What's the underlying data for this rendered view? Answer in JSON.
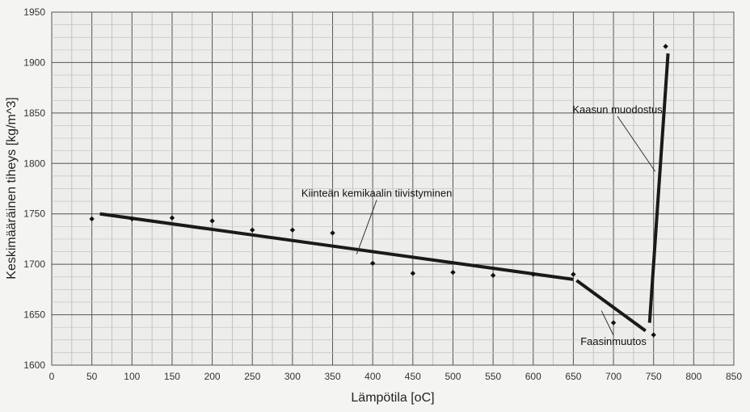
{
  "chart_data": {
    "type": "scatter",
    "xlabel": "Lämpötila [oC]",
    "ylabel": "Keskimääräinen tiheys [kg/m^3]",
    "xlim": [
      0,
      850
    ],
    "ylim": [
      1600,
      1950
    ],
    "x_ticks": [
      0,
      50,
      100,
      150,
      200,
      250,
      300,
      350,
      400,
      450,
      500,
      550,
      600,
      650,
      700,
      750,
      800,
      850
    ],
    "y_ticks": [
      1600,
      1650,
      1700,
      1750,
      1800,
      1850,
      1900,
      1950
    ],
    "grid": true,
    "points": {
      "x": [
        50,
        100,
        150,
        200,
        250,
        300,
        350,
        400,
        450,
        500,
        550,
        600,
        650,
        700,
        750,
        765
      ],
      "y": [
        1745,
        1745,
        1746,
        1743,
        1734,
        1734,
        1731,
        1701,
        1691,
        1692,
        1689,
        1690,
        1690,
        1642,
        1630,
        1916
      ]
    },
    "lines": [
      {
        "x": [
          60,
          650
        ],
        "y": [
          1750,
          1685
        ]
      },
      {
        "x": [
          654,
          740
        ],
        "y": [
          1684,
          1634
        ]
      },
      {
        "x": [
          745,
          768
        ],
        "y": [
          1642,
          1909
        ]
      }
    ],
    "annotations": [
      {
        "text": "Kiinteän kemikaalin tiivistyminen",
        "at": [
          405,
          1767
        ],
        "arrow_to": [
          380,
          1710
        ]
      },
      {
        "text": "Faasinmuutos",
        "at": [
          700,
          1620
        ],
        "arrow_to": [
          685,
          1654
        ]
      },
      {
        "text": "Kaasun muodostus",
        "at": [
          705,
          1850
        ],
        "arrow_to": [
          752,
          1792
        ]
      }
    ]
  }
}
